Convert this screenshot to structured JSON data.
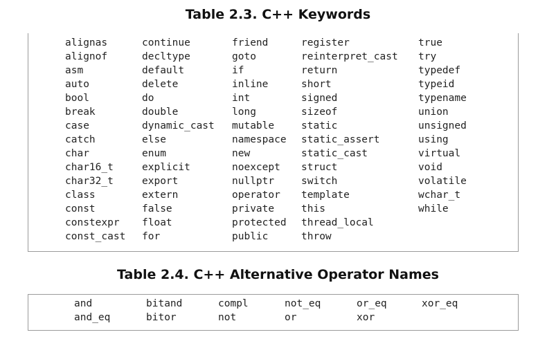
{
  "table1": {
    "caption": "Table 2.3. C++ Keywords",
    "columns": [
      [
        "alignas",
        "alignof",
        "asm",
        "auto",
        "bool",
        "break",
        "case",
        "catch",
        "char",
        "char16_t",
        "char32_t",
        "class",
        "const",
        "constexpr",
        "const_cast"
      ],
      [
        "continue",
        "decltype",
        "default",
        "delete",
        "do",
        "double",
        "dynamic_cast",
        "else",
        "enum",
        "explicit",
        "export",
        "extern",
        "false",
        "float",
        "for"
      ],
      [
        "friend",
        "goto",
        "if",
        "inline",
        "int",
        "long",
        "mutable",
        "namespace",
        "new",
        "noexcept",
        "nullptr",
        "operator",
        "private",
        "protected",
        "public"
      ],
      [
        "register",
        "reinterpret_cast",
        "return",
        "short",
        "signed",
        "sizeof",
        "static",
        "static_assert",
        "static_cast",
        "struct",
        "switch",
        "template",
        "this",
        "thread_local",
        "throw"
      ],
      [
        "true",
        "try",
        "typedef",
        "typeid",
        "typename",
        "union",
        "unsigned",
        "using",
        "virtual",
        "void",
        "volatile",
        "wchar_t",
        "while"
      ]
    ]
  },
  "table2": {
    "caption": "Table 2.4. C++ Alternative Operator Names",
    "columns": [
      [
        "and",
        "and_eq"
      ],
      [
        "bitand",
        "bitor"
      ],
      [
        "compl",
        "not"
      ],
      [
        "not_eq",
        "or"
      ],
      [
        "or_eq",
        "xor"
      ],
      [
        "xor_eq"
      ]
    ]
  }
}
